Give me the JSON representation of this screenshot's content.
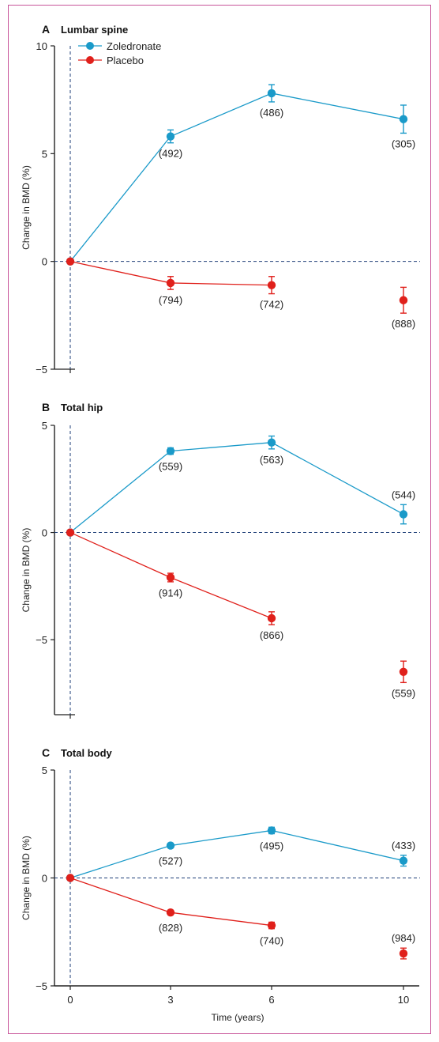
{
  "colors": {
    "zoledronate": "#1a9ac9",
    "placebo": "#e0201b",
    "axis": "#222222",
    "refline": "#1f3f78",
    "frame": "#c8559a"
  },
  "legend": {
    "items": [
      {
        "label": "Zoledronate",
        "color": "#1a9ac9"
      },
      {
        "label": "Placebo",
        "color": "#e0201b"
      }
    ]
  },
  "x_axis": {
    "label": "Time (years)",
    "ticks": [
      "0",
      "3",
      "6",
      "10"
    ]
  },
  "chart_data": [
    {
      "type": "line",
      "panel_letter": "A",
      "title": "Lumbar spine",
      "ylabel": "Change in BMD (%)",
      "xlabel": "",
      "ylim": [
        -5,
        10
      ],
      "yticks": [
        -5,
        0,
        5,
        10
      ],
      "x": [
        0,
        3,
        6,
        10
      ],
      "series": [
        {
          "name": "Zoledronate",
          "points": [
            {
              "x": 0,
              "y": 0,
              "err": 0,
              "n": ""
            },
            {
              "x": 3,
              "y": 5.8,
              "err": 0.3,
              "n": "(492)"
            },
            {
              "x": 6,
              "y": 7.8,
              "err": 0.4,
              "n": "(486)"
            },
            {
              "x": 10,
              "y": 6.6,
              "err": 0.65,
              "n": "(305)"
            }
          ]
        },
        {
          "name": "Placebo",
          "points": [
            {
              "x": 0,
              "y": 0,
              "err": 0,
              "n": ""
            },
            {
              "x": 3,
              "y": -1.0,
              "err": 0.3,
              "n": "(794)"
            },
            {
              "x": 6,
              "y": -1.1,
              "err": 0.4,
              "n": "(742)"
            },
            {
              "x": 10,
              "y": -1.8,
              "err": 0.6,
              "n": "(888)"
            }
          ]
        }
      ]
    },
    {
      "type": "line",
      "panel_letter": "B",
      "title": "Total hip",
      "ylabel": "Change in BMD (%)",
      "xlabel": "",
      "ylim": [
        -8.5,
        5
      ],
      "yticks": [
        -5,
        0,
        5
      ],
      "x": [
        0,
        3,
        6,
        10
      ],
      "series": [
        {
          "name": "Zoledronate",
          "points": [
            {
              "x": 0,
              "y": 0,
              "err": 0,
              "n": ""
            },
            {
              "x": 3,
              "y": 3.8,
              "err": 0.15,
              "n": "(559)"
            },
            {
              "x": 6,
              "y": 4.2,
              "err": 0.3,
              "n": "(563)"
            },
            {
              "x": 10,
              "y": 0.85,
              "err": 0.45,
              "n": "(544)"
            }
          ]
        },
        {
          "name": "Placebo",
          "points": [
            {
              "x": 0,
              "y": 0,
              "err": 0,
              "n": ""
            },
            {
              "x": 3,
              "y": -2.1,
              "err": 0.2,
              "n": "(914)"
            },
            {
              "x": 6,
              "y": -4.0,
              "err": 0.3,
              "n": "(866)"
            },
            {
              "x": 10,
              "y": -6.5,
              "err": 0.5,
              "n": "(559)"
            }
          ]
        }
      ]
    },
    {
      "type": "line",
      "panel_letter": "C",
      "title": "Total body",
      "ylabel": "Change in BMD (%)",
      "xlabel": "Time (years)",
      "ylim": [
        -5,
        5
      ],
      "yticks": [
        -5,
        0,
        5
      ],
      "x": [
        0,
        3,
        6,
        10
      ],
      "series": [
        {
          "name": "Zoledronate",
          "points": [
            {
              "x": 0,
              "y": 0,
              "err": 0,
              "n": ""
            },
            {
              "x": 3,
              "y": 1.5,
              "err": 0.1,
              "n": "(527)"
            },
            {
              "x": 6,
              "y": 2.2,
              "err": 0.15,
              "n": "(495)"
            },
            {
              "x": 10,
              "y": 0.8,
              "err": 0.25,
              "n": "(433)"
            }
          ]
        },
        {
          "name": "Placebo",
          "points": [
            {
              "x": 0,
              "y": 0,
              "err": 0,
              "n": ""
            },
            {
              "x": 3,
              "y": -1.6,
              "err": 0.1,
              "n": "(828)"
            },
            {
              "x": 6,
              "y": -2.2,
              "err": 0.15,
              "n": "(740)"
            },
            {
              "x": 10,
              "y": -3.5,
              "err": 0.25,
              "n": "(984)"
            }
          ]
        }
      ]
    }
  ]
}
